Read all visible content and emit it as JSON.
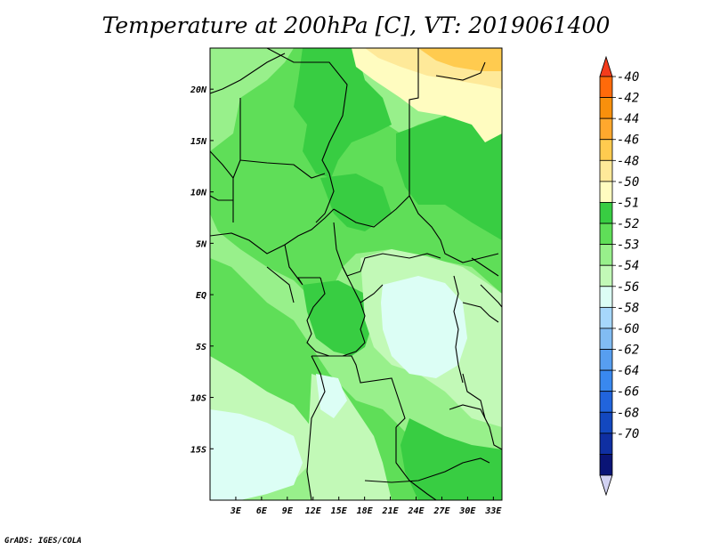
{
  "title": "Temperature at 200hPa [C], VT: 2019061400",
  "credit": "GrADS: IGES/COLA",
  "map": {
    "lat_labels": [
      {
        "label": "20N",
        "value": 20
      },
      {
        "label": "15N",
        "value": 15
      },
      {
        "label": "10N",
        "value": 10
      },
      {
        "label": "5N",
        "value": 5
      },
      {
        "label": "EQ",
        "value": 0
      },
      {
        "label": "5S",
        "value": -5
      },
      {
        "label": "10S",
        "value": -10
      },
      {
        "label": "15S",
        "value": -15
      }
    ],
    "lon_labels": [
      {
        "label": "3E",
        "value": 3
      },
      {
        "label": "6E",
        "value": 6
      },
      {
        "label": "9E",
        "value": 9
      },
      {
        "label": "12E",
        "value": 12
      },
      {
        "label": "15E",
        "value": 15
      },
      {
        "label": "18E",
        "value": 18
      },
      {
        "label": "21E",
        "value": 21
      },
      {
        "label": "24E",
        "value": 24
      },
      {
        "label": "27E",
        "value": 27
      },
      {
        "label": "30E",
        "value": 30
      },
      {
        "label": "33E",
        "value": 33
      }
    ]
  },
  "colorbar": {
    "labels": [
      "-40",
      "-42",
      "-44",
      "-46",
      "-48",
      "-50",
      "-51",
      "-52",
      "-53",
      "-54",
      "-56",
      "-58",
      "-60",
      "-62",
      "-64",
      "-66",
      "-68",
      "-70"
    ],
    "colors": [
      "#f43c1c",
      "#ff6a0a",
      "#f8900c",
      "#ffa82d",
      "#ffcb4f",
      "#fee999",
      "#fffcc0",
      "#38cd42",
      "#5fde58",
      "#98f08b",
      "#c2f9b7",
      "#dcfef5",
      "#a6d7fb",
      "#81bcf3",
      "#579ef0",
      "#3988ef",
      "#2164dc",
      "#1348bf",
      "#0f2fa2",
      "#0a1476",
      "#d2d2f2"
    ]
  }
}
